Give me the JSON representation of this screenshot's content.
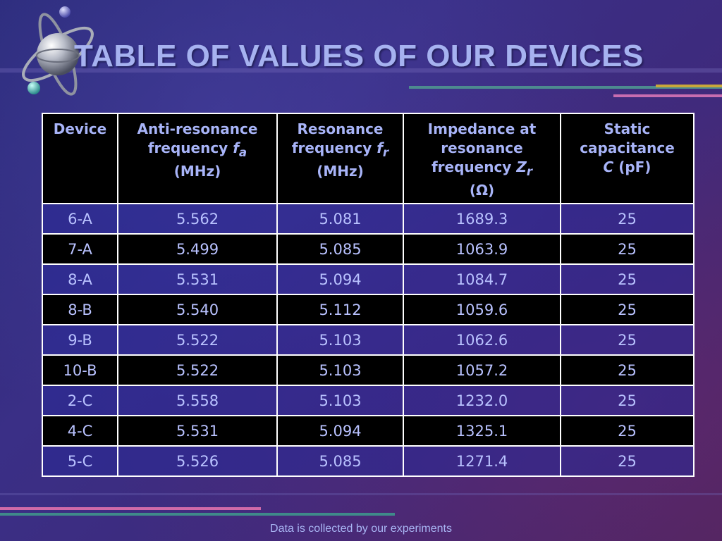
{
  "slide": {
    "title": "TABLE OF VALUES OF OUR DEVICES",
    "footer": "Data is collected by our experiments"
  },
  "table": {
    "headers": {
      "device": "Device",
      "antiresonance": {
        "line1": "Anti-resonance",
        "line2": "frequency",
        "symbol": "f",
        "sub": "a",
        "unit": "(MHz)"
      },
      "resonance": {
        "line1": "Resonance",
        "line2": "frequency",
        "symbol": "f",
        "sub": "r",
        "unit": "(MHz)"
      },
      "impedance": {
        "line1": "Impedance at",
        "line2": "resonance",
        "line3": "frequency",
        "symbol": "Z",
        "sub": "r",
        "unit": "(Ω)"
      },
      "capacitance": {
        "line1": "Static",
        "line2": "capacitance",
        "symbol": "C",
        "unit": "(pF)"
      }
    },
    "rows": [
      {
        "device": "6-A",
        "fa": "5.562",
        "fr": "5.081",
        "zr": "1689.3",
        "c": "25"
      },
      {
        "device": "7-A",
        "fa": "5.499",
        "fr": "5.085",
        "zr": "1063.9",
        "c": "25"
      },
      {
        "device": "8-A",
        "fa": "5.531",
        "fr": "5.094",
        "zr": "1084.7",
        "c": "25"
      },
      {
        "device": "8-B",
        "fa": "5.540",
        "fr": "5.112",
        "zr": "1059.6",
        "c": "25"
      },
      {
        "device": "9-B",
        "fa": "5.522",
        "fr": "5.103",
        "zr": "1062.6",
        "c": "25"
      },
      {
        "device": "10-B",
        "fa": "5.522",
        "fr": "5.103",
        "zr": "1057.2",
        "c": "25"
      },
      {
        "device": "2-C",
        "fa": "5.558",
        "fr": "5.103",
        "zr": "1232.0",
        "c": "25"
      },
      {
        "device": "4-C",
        "fa": "5.531",
        "fr": "5.094",
        "zr": "1325.1",
        "c": "25"
      },
      {
        "device": "5-C",
        "fa": "5.526",
        "fr": "5.085",
        "zr": "1271.4",
        "c": "25"
      }
    ]
  },
  "theme": {
    "title_color": "#a6b2f0",
    "cell_text_color": "#b9c2ff",
    "header_background": "#000000",
    "odd_row_background": "#28289a",
    "even_row_background": "#000000"
  },
  "icons": {
    "logo": "atom-logo-icon"
  }
}
